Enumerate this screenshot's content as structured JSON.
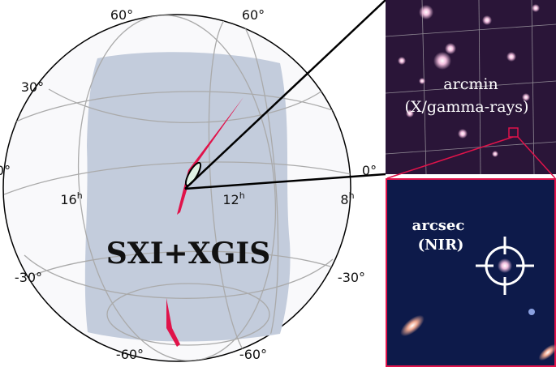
{
  "globe": {
    "lat_labels": [
      "60°",
      "60°",
      "30°",
      "0°",
      "0°",
      "-30°",
      "-30°",
      "-60°",
      "-60°"
    ],
    "ra_labels": [
      {
        "number": "16",
        "unit": "h"
      },
      {
        "number": "12",
        "unit": "h"
      },
      {
        "number": "8",
        "unit": "h"
      }
    ],
    "coverage_label": "SXI+XGIS"
  },
  "insets": [
    {
      "lines": [
        "arcmin",
        "(X/gamma-rays)"
      ]
    },
    {
      "lines": [
        "arcsec",
        "(NIR)"
      ]
    }
  ]
}
